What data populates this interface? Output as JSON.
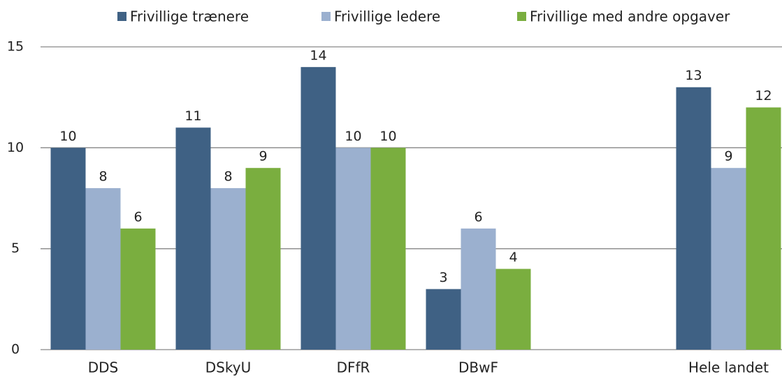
{
  "chart_data": {
    "type": "bar",
    "categories": [
      "DDS",
      "DSkyU",
      "DFfR",
      "DBwF",
      null,
      "Hele landet"
    ],
    "series": [
      {
        "name": "Frivillige trænere",
        "color": "#3f6184",
        "values": [
          10,
          11,
          14,
          3,
          null,
          13
        ]
      },
      {
        "name": "Frivillige ledere",
        "color": "#9bb0cf",
        "values": [
          8,
          8,
          10,
          6,
          null,
          9
        ]
      },
      {
        "name": "Frivillige med andre opgaver",
        "color": "#7aae3f",
        "values": [
          6,
          9,
          10,
          4,
          null,
          12
        ]
      }
    ],
    "ylim": [
      0,
      15
    ],
    "yticks": [
      0,
      5,
      10,
      15
    ],
    "grid": true,
    "legend": "top"
  }
}
